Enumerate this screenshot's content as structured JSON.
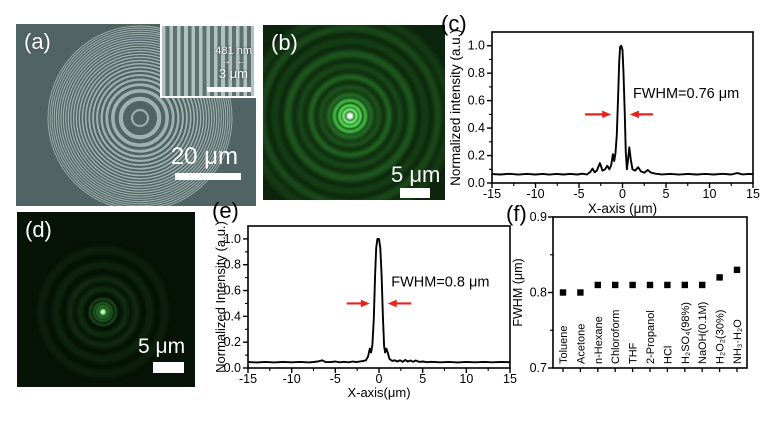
{
  "panels": {
    "a": {
      "label": "(a)",
      "scalebar_label": "20 μm",
      "inset": {
        "annotation": "481 nm",
        "scalebar_label": "3 μm"
      }
    },
    "b": {
      "label": "(b)",
      "scalebar_label": "5 μm"
    },
    "c": {
      "label": "(c)"
    },
    "d": {
      "label": "(d)",
      "scalebar_label": "5 μm"
    },
    "e": {
      "label": "(e)"
    },
    "f": {
      "label": "(f)"
    }
  },
  "icons": {
    "arrow_right": "→",
    "arrow_left": "←"
  },
  "colors": {
    "sem_bg": "#516465",
    "sem_ring": "#a7b9b5",
    "inset_stripe_light": "#b2c3bf",
    "inset_stripe_dark": "#5d7170",
    "panel_b_bg": "#0c230c",
    "panel_d_bg": "#071307",
    "laser_green": "#3fcf3f",
    "annotation_red": "#e8231e",
    "scalebar_white": "#ffffff",
    "axis": "#000000"
  },
  "chart_data": [
    {
      "panel": "c",
      "type": "line",
      "xlabel": "X-axis (μm)",
      "ylabel": "Normalized intensity (a.u.)",
      "xlim": [
        -15,
        15
      ],
      "ylim": [
        0,
        1.1
      ],
      "xticks": [
        -15,
        -10,
        -5,
        0,
        5,
        10,
        15
      ],
      "yticks": [
        0,
        0.2,
        0.4,
        0.6,
        0.8,
        1.0
      ],
      "minor_x": 2.5,
      "minor_y": 0.1,
      "grid": false,
      "points": [
        [
          -15,
          0.065
        ],
        [
          -14,
          0.062
        ],
        [
          -13,
          0.067
        ],
        [
          -12,
          0.061
        ],
        [
          -11,
          0.066
        ],
        [
          -10,
          0.062
        ],
        [
          -9.2,
          0.066
        ],
        [
          -8.4,
          0.061
        ],
        [
          -7.6,
          0.066
        ],
        [
          -6.8,
          0.062
        ],
        [
          -6,
          0.066
        ],
        [
          -5.2,
          0.062
        ],
        [
          -4.6,
          0.068
        ],
        [
          -4.1,
          0.062
        ],
        [
          -3.7,
          0.08
        ],
        [
          -3.45,
          0.105
        ],
        [
          -3.2,
          0.078
        ],
        [
          -2.95,
          0.09
        ],
        [
          -2.6,
          0.145
        ],
        [
          -2.3,
          0.09
        ],
        [
          -2,
          0.1
        ],
        [
          -1.75,
          0.125
        ],
        [
          -1.5,
          0.1
        ],
        [
          -1.3,
          0.13
        ],
        [
          -1.1,
          0.21
        ],
        [
          -0.95,
          0.16
        ],
        [
          -0.8,
          0.22
        ],
        [
          -0.65,
          0.35
        ],
        [
          -0.5,
          0.65
        ],
        [
          -0.38,
          0.88
        ],
        [
          -0.28,
          0.99
        ],
        [
          -0.15,
          1.0
        ],
        [
          0,
          0.97
        ],
        [
          0.12,
          0.8
        ],
        [
          0.25,
          0.52
        ],
        [
          0.38,
          0.22
        ],
        [
          0.5,
          0.1
        ],
        [
          0.62,
          0.16
        ],
        [
          0.78,
          0.26
        ],
        [
          0.95,
          0.17
        ],
        [
          1.15,
          0.1
        ],
        [
          1.45,
          0.09
        ],
        [
          1.8,
          0.115
        ],
        [
          2.1,
          0.085
        ],
        [
          2.5,
          0.075
        ],
        [
          2.9,
          0.095
        ],
        [
          3.3,
          0.075
        ],
        [
          3.8,
          0.068
        ],
        [
          4.5,
          0.063
        ],
        [
          5.5,
          0.066
        ],
        [
          6.5,
          0.061
        ],
        [
          7.5,
          0.066
        ],
        [
          8.5,
          0.062
        ],
        [
          9.5,
          0.066
        ],
        [
          10.5,
          0.062
        ],
        [
          11.5,
          0.067
        ],
        [
          12.5,
          0.062
        ],
        [
          13.2,
          0.072
        ],
        [
          13.8,
          0.063
        ],
        [
          14.5,
          0.066
        ],
        [
          15,
          0.064
        ]
      ],
      "annotation": {
        "text": "FWHM=0.76 μm",
        "x": 1.2,
        "y": 0.62,
        "color": "#e8231e",
        "arrows": [
          [
            -4.3,
            0.5,
            -1.3,
            0.5
          ],
          [
            3.5,
            0.5,
            0.85,
            0.5
          ]
        ]
      }
    },
    {
      "panel": "e",
      "type": "line",
      "xlabel": "X-axis(μm)",
      "ylabel": "Normalized Intensity (a.u.)",
      "xlim": [
        -15,
        15
      ],
      "ylim": [
        0,
        1.1
      ],
      "xticks": [
        -15,
        -10,
        -5,
        0,
        5,
        10,
        15
      ],
      "yticks": [
        0,
        0.2,
        0.4,
        0.6,
        0.8,
        1.0
      ],
      "minor_x": 2.5,
      "minor_y": 0.1,
      "grid": false,
      "points": [
        [
          -15,
          0.046
        ],
        [
          -14,
          0.043
        ],
        [
          -13,
          0.047
        ],
        [
          -12,
          0.043
        ],
        [
          -11,
          0.047
        ],
        [
          -10,
          0.044
        ],
        [
          -9,
          0.047
        ],
        [
          -8,
          0.043
        ],
        [
          -7,
          0.05
        ],
        [
          -6.5,
          0.06
        ],
        [
          -6.1,
          0.046
        ],
        [
          -5.5,
          0.046
        ],
        [
          -5,
          0.05
        ],
        [
          -4.5,
          0.044
        ],
        [
          -4,
          0.048
        ],
        [
          -3.5,
          0.044
        ],
        [
          -3,
          0.05
        ],
        [
          -2.6,
          0.046
        ],
        [
          -2.2,
          0.05
        ],
        [
          -1.8,
          0.055
        ],
        [
          -1.5,
          0.06
        ],
        [
          -1.25,
          0.09
        ],
        [
          -1.05,
          0.15
        ],
        [
          -0.9,
          0.12
        ],
        [
          -0.75,
          0.18
        ],
        [
          -0.6,
          0.38
        ],
        [
          -0.45,
          0.72
        ],
        [
          -0.32,
          0.93
        ],
        [
          -0.18,
          1.0
        ],
        [
          0,
          1.0
        ],
        [
          0.15,
          0.93
        ],
        [
          0.3,
          0.72
        ],
        [
          0.45,
          0.4
        ],
        [
          0.58,
          0.17
        ],
        [
          0.7,
          0.12
        ],
        [
          0.85,
          0.15
        ],
        [
          1,
          0.12
        ],
        [
          1.2,
          0.07
        ],
        [
          1.5,
          0.055
        ],
        [
          1.8,
          0.06
        ],
        [
          2.1,
          0.05
        ],
        [
          2.4,
          0.06
        ],
        [
          2.7,
          0.048
        ],
        [
          3,
          0.062
        ],
        [
          3.3,
          0.05
        ],
        [
          3.6,
          0.058
        ],
        [
          3.9,
          0.048
        ],
        [
          4.2,
          0.058
        ],
        [
          4.6,
          0.047
        ],
        [
          5,
          0.05
        ],
        [
          5.5,
          0.045
        ],
        [
          6,
          0.048
        ],
        [
          7,
          0.044
        ],
        [
          8,
          0.047
        ],
        [
          9,
          0.043
        ],
        [
          10,
          0.047
        ],
        [
          11,
          0.044
        ],
        [
          12,
          0.047
        ],
        [
          13,
          0.044
        ],
        [
          14,
          0.047
        ],
        [
          15,
          0.045
        ]
      ],
      "annotation": {
        "text": "FWHM=0.8 μm",
        "x": 1.4,
        "y": 0.63,
        "color": "#e8231e",
        "arrows": [
          [
            -3.7,
            0.5,
            -1.05,
            0.5
          ],
          [
            3.7,
            0.5,
            1.0,
            0.5
          ]
        ]
      }
    },
    {
      "panel": "f",
      "type": "scatter",
      "ylabel": "FWHM (μm)",
      "ylim": [
        0.7,
        0.9
      ],
      "yticks": [
        0.7,
        0.8,
        0.9
      ],
      "minor_y": 0.05,
      "grid": false,
      "marker": "square",
      "categories": [
        "Toluene",
        "Acetone",
        "n-Hexane",
        "Chloroform",
        "THF",
        "2-Propanol",
        "HCl",
        "H₂SO₄(98%)",
        "NaOH(0.1M)",
        "H₂O₂(30%)",
        "NH₃·H₂O"
      ],
      "values": [
        0.8,
        0.8,
        0.81,
        0.81,
        0.81,
        0.81,
        0.81,
        0.81,
        0.81,
        0.82,
        0.83
      ]
    }
  ]
}
